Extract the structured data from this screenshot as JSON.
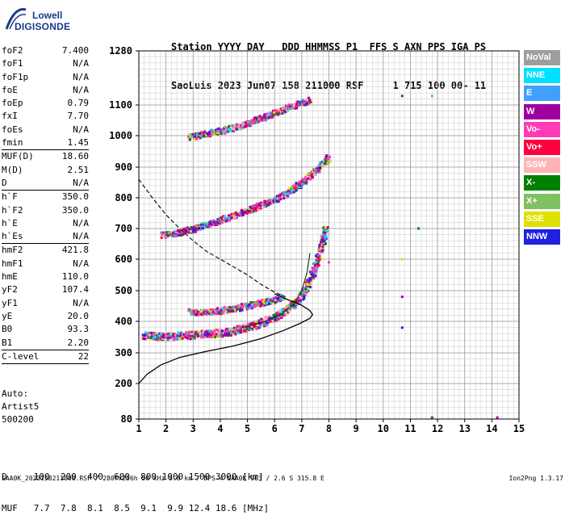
{
  "logo": {
    "line1": "Lowell",
    "line2": "DIGISONDE"
  },
  "header": {
    "row1": "Station YYYY DAY   DDD HHMMSS P1  FFS S AXN PPS IGA PS",
    "row2": "SaoLuis 2023 Jun07 158 211000 RSF     1 715 100 00- 11"
  },
  "params": {
    "group1": [
      {
        "label": "foF2",
        "value": "7.400"
      },
      {
        "label": "foF1",
        "value": "N/A"
      },
      {
        "label": "foF1p",
        "value": "N/A"
      },
      {
        "label": "foE",
        "value": "N/A"
      },
      {
        "label": "foEp",
        "value": "0.79"
      },
      {
        "label": "fxI",
        "value": "7.70"
      },
      {
        "label": "foEs",
        "value": "N/A"
      },
      {
        "label": "fmin",
        "value": "1.45"
      }
    ],
    "group2": [
      {
        "label": "MUF(D)",
        "value": "18.60"
      },
      {
        "label": "M(D)",
        "value": "2.51"
      },
      {
        "label": "D",
        "value": "N/A"
      }
    ],
    "group3": [
      {
        "label": "h`F",
        "value": "350.0"
      },
      {
        "label": "h`F2",
        "value": "350.0"
      },
      {
        "label": "h`E",
        "value": "N/A"
      },
      {
        "label": "h`Es",
        "value": "N/A"
      }
    ],
    "group4": [
      {
        "label": "hmF2",
        "value": "421.8"
      },
      {
        "label": "hmF1",
        "value": "N/A"
      },
      {
        "label": "hmE",
        "value": "110.0"
      },
      {
        "label": "yF2",
        "value": "107.4"
      },
      {
        "label": "yF1",
        "value": "N/A"
      },
      {
        "label": "yE",
        "value": "20.0"
      },
      {
        "label": "B0",
        "value": "93.3"
      },
      {
        "label": "B1",
        "value": "2.20"
      }
    ],
    "group5": [
      {
        "label": "C-level",
        "value": "22"
      }
    ]
  },
  "auto": {
    "line1": "Auto:",
    "line2": "Artist5",
    "line3": "500200"
  },
  "legend": [
    {
      "label": "NoVal",
      "color": "#9e9e9e"
    },
    {
      "label": "NNE",
      "color": "#00e0ff"
    },
    {
      "label": "E",
      "color": "#3fa0ff"
    },
    {
      "label": "W",
      "color": "#a000a0"
    },
    {
      "label": "Vo-",
      "color": "#ff3cb4"
    },
    {
      "label": "Vo+",
      "color": "#ff0040"
    },
    {
      "label": "SSW",
      "color": "#ffb4b4"
    },
    {
      "label": "X-",
      "color": "#008000"
    },
    {
      "label": "X+",
      "color": "#80c060"
    },
    {
      "label": "SSE",
      "color": "#e0e000"
    },
    {
      "label": "NNW",
      "color": "#2020e0"
    }
  ],
  "bottom": {
    "d_row": "D     100  200  400  600  800 1000 1500 3000 [km]",
    "muf_row": "MUF   7.7  7.8  8.1  8.5  9.1  9.9 12.4 18.6 [MHz]"
  },
  "footer": {
    "left": "SAA0K_2023158211000.RSF / 280fx256h 50 kHz 5.0 km / DPS-4 SAA0K 903 / 2.6 S 315.8 E",
    "right": "Ion2Png 1.3.17"
  },
  "chart_data": {
    "type": "scatter",
    "xlim": [
      1,
      15
    ],
    "ylim": [
      80,
      1280
    ],
    "y_nonlinear_scale": true,
    "grid": true,
    "x_ticks": [
      "1",
      "2",
      "3",
      "4",
      "5",
      "6",
      "7",
      "8",
      "9",
      "10",
      "11",
      "12",
      "13",
      "14",
      "15"
    ],
    "y_ticks": [
      "80",
      "200",
      "300",
      "400",
      "500",
      "600",
      "700",
      "800",
      "900",
      "1000",
      "1100",
      "1280"
    ],
    "profile_line": [
      [
        1.0,
        200
      ],
      [
        1.3,
        230
      ],
      [
        1.8,
        260
      ],
      [
        2.5,
        285
      ],
      [
        3.5,
        305
      ],
      [
        4.5,
        322
      ],
      [
        5.5,
        345
      ],
      [
        6.3,
        370
      ],
      [
        6.9,
        392
      ],
      [
        7.3,
        410
      ],
      [
        7.4,
        422
      ],
      [
        7.3,
        435
      ],
      [
        7.0,
        452
      ],
      [
        6.5,
        470
      ],
      [
        6.0,
        490
      ]
    ],
    "dashed_line": [
      [
        1.0,
        860
      ],
      [
        1.5,
        800
      ],
      [
        2.0,
        745
      ],
      [
        2.5,
        700
      ],
      [
        3.0,
        660
      ],
      [
        3.5,
        625
      ],
      [
        4.0,
        600
      ],
      [
        4.5,
        575
      ],
      [
        5.0,
        550
      ],
      [
        5.5,
        520
      ],
      [
        6.0,
        495
      ],
      [
        6.4,
        480
      ]
    ],
    "o_trace_line": [
      [
        4.8,
        380
      ],
      [
        5.5,
        395
      ],
      [
        6.2,
        420
      ],
      [
        6.7,
        455
      ],
      [
        7.0,
        500
      ],
      [
        7.2,
        560
      ],
      [
        7.3,
        620
      ]
    ],
    "traces": [
      {
        "name": "F2 1-hop",
        "points": [
          [
            1.2,
            355
          ],
          [
            1.6,
            352
          ],
          [
            2.0,
            350
          ],
          [
            2.4,
            352
          ],
          [
            2.8,
            355
          ],
          [
            3.2,
            358
          ],
          [
            3.6,
            360
          ],
          [
            4.0,
            362
          ],
          [
            4.4,
            367
          ],
          [
            4.8,
            375
          ],
          [
            5.2,
            385
          ],
          [
            5.6,
            397
          ],
          [
            6.0,
            410
          ],
          [
            6.3,
            425
          ],
          [
            6.6,
            445
          ],
          [
            6.9,
            470
          ],
          [
            7.2,
            510
          ],
          [
            7.4,
            550
          ],
          [
            7.6,
            600
          ],
          [
            7.8,
            660
          ],
          [
            7.9,
            700
          ]
        ]
      },
      {
        "name": "F2 1-hop x",
        "points": [
          [
            2.9,
            430
          ],
          [
            3.3,
            428
          ],
          [
            3.7,
            430
          ],
          [
            4.1,
            435
          ],
          [
            4.5,
            440
          ],
          [
            4.9,
            448
          ],
          [
            5.3,
            455
          ],
          [
            5.7,
            462
          ],
          [
            6.0,
            470
          ],
          [
            6.3,
            480
          ]
        ]
      },
      {
        "name": "F2 2-hop",
        "points": [
          [
            1.9,
            678
          ],
          [
            2.3,
            682
          ],
          [
            2.7,
            690
          ],
          [
            3.1,
            700
          ],
          [
            3.5,
            710
          ],
          [
            3.9,
            722
          ],
          [
            4.3,
            735
          ],
          [
            4.7,
            748
          ],
          [
            5.1,
            760
          ],
          [
            5.5,
            775
          ],
          [
            5.9,
            788
          ],
          [
            6.3,
            805
          ],
          [
            6.6,
            822
          ],
          [
            6.9,
            842
          ],
          [
            7.2,
            862
          ],
          [
            7.5,
            885
          ],
          [
            7.8,
            910
          ],
          [
            8.0,
            930
          ]
        ]
      },
      {
        "name": "F2 3-hop",
        "points": [
          [
            2.9,
            995
          ],
          [
            3.2,
            1000
          ],
          [
            3.5,
            1005
          ],
          [
            3.9,
            1012
          ],
          [
            4.3,
            1020
          ],
          [
            4.7,
            1030
          ],
          [
            5.1,
            1042
          ],
          [
            5.5,
            1055
          ],
          [
            6.0,
            1072
          ],
          [
            6.5,
            1090
          ],
          [
            7.0,
            1105
          ],
          [
            7.3,
            1115
          ]
        ]
      },
      {
        "name": "scatter",
        "points": [
          [
            10.7,
            1130
          ],
          [
            11.8,
            1130
          ],
          [
            10.7,
            600
          ],
          [
            10.7,
            480
          ],
          [
            10.7,
            380
          ],
          [
            11.3,
            700
          ],
          [
            8.0,
            590
          ],
          [
            11.8,
            85
          ],
          [
            14.2,
            85
          ]
        ]
      }
    ]
  }
}
